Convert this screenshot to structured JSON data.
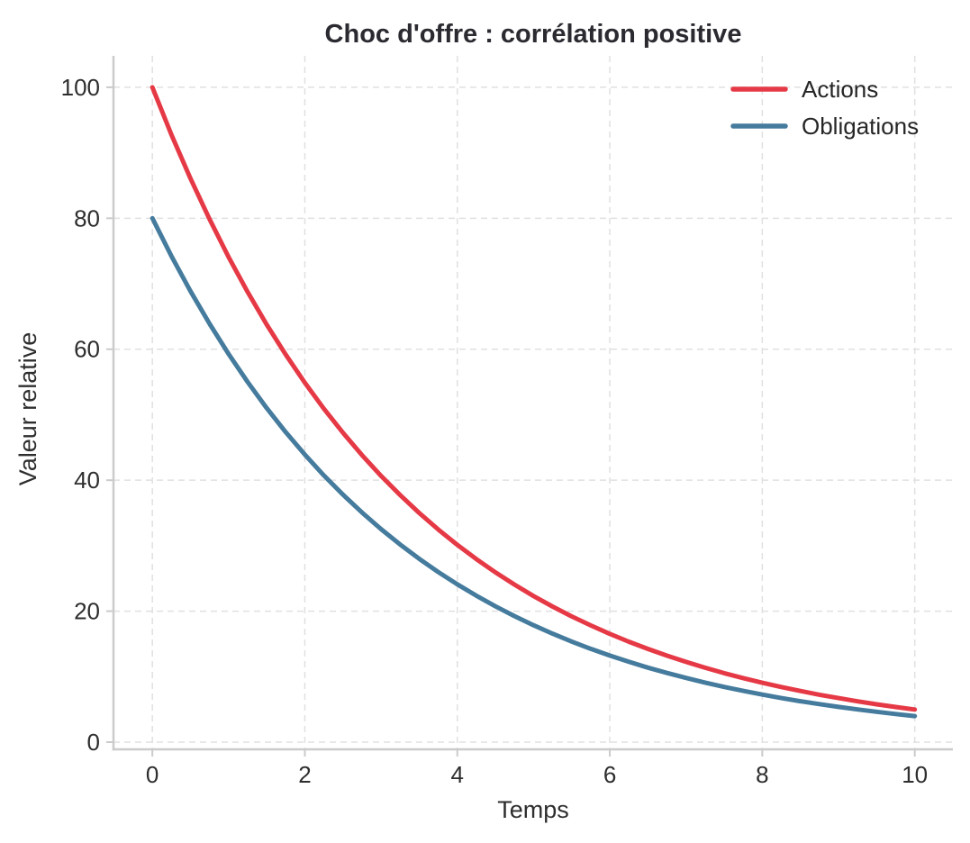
{
  "window": {
    "background": "#ffffff"
  },
  "colors": {
    "grid": "#e0e0e0",
    "spine": "#cbcbcb",
    "tick": "#cbcbcb",
    "text": "#2e2e2e",
    "title": "#2a2a30",
    "actions_line": "#e63946",
    "obligations_line": "#457b9d"
  },
  "chart_data": {
    "type": "line",
    "title": "Choc d'offre : corrélation positive",
    "xlabel": "Temps",
    "ylabel": "Valeur relative",
    "x_ticks": [
      0,
      2,
      4,
      6,
      8,
      10
    ],
    "y_ticks": [
      0,
      20,
      40,
      60,
      80,
      100
    ],
    "xlim": [
      -0.51,
      10.5
    ],
    "ylim": [
      -1.1,
      104.8
    ],
    "grid": "dashed",
    "legend_position": "top-right",
    "x": [
      0,
      0.25,
      0.5,
      0.75,
      1,
      1.25,
      1.5,
      1.75,
      2,
      2.25,
      2.5,
      2.75,
      3,
      3.25,
      3.5,
      3.75,
      4,
      4.25,
      4.5,
      4.75,
      5,
      5.25,
      5.5,
      5.75,
      6,
      6.25,
      6.5,
      6.75,
      7,
      7.25,
      7.5,
      7.75,
      8,
      8.25,
      8.5,
      8.75,
      9,
      9.25,
      9.5,
      9.75,
      10
    ],
    "series": [
      {
        "name": "Actions",
        "color": "#e63946",
        "values": [
          100,
          92.77,
          86.07,
          79.85,
          74.08,
          68.73,
          63.76,
          59.16,
          54.88,
          50.92,
          47.24,
          43.82,
          40.66,
          37.72,
          35.0,
          32.47,
          30.12,
          27.94,
          25.92,
          24.05,
          22.31,
          20.7,
          19.2,
          17.82,
          16.53,
          15.34,
          14.23,
          13.2,
          12.25,
          11.36,
          10.54,
          9.78,
          9.07,
          8.42,
          7.81,
          7.24,
          6.72,
          6.23,
          5.78,
          5.37,
          4.98
        ]
      },
      {
        "name": "Obligations",
        "color": "#457b9d",
        "values": [
          80,
          74.22,
          68.86,
          63.88,
          59.27,
          54.98,
          51.01,
          47.32,
          43.9,
          40.73,
          37.79,
          35.06,
          32.53,
          30.18,
          28.0,
          25.97,
          24.1,
          22.36,
          20.74,
          19.24,
          17.85,
          16.56,
          15.36,
          14.25,
          13.22,
          12.27,
          11.38,
          10.56,
          9.8,
          9.09,
          8.43,
          7.82,
          7.26,
          6.73,
          6.25,
          5.8,
          5.38,
          4.99,
          4.63,
          4.29,
          3.98
        ]
      }
    ]
  }
}
